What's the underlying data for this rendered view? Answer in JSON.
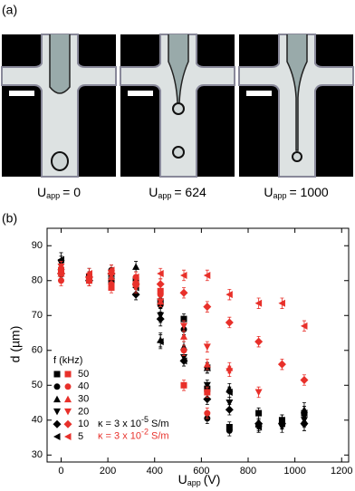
{
  "panel_a": {
    "label": "(a)",
    "images": [
      {
        "label": "U",
        "sub": "app",
        "value": "= 0"
      },
      {
        "label": "U",
        "sub": "app",
        "value": "= 624"
      },
      {
        "label": "U",
        "sub": "app",
        "value": "= 1000"
      }
    ]
  },
  "chart_data": {
    "type": "scatter",
    "panel_label": "(b)",
    "xlabel": {
      "main": "U",
      "sub": "app",
      "unit": "(V)"
    },
    "ylabel": "d (µm)",
    "xlim": [
      -60,
      1230
    ],
    "ylim": [
      28,
      95
    ],
    "xticks": [
      0,
      200,
      400,
      600,
      800,
      1000,
      1200
    ],
    "yticks": [
      30,
      40,
      50,
      60,
      70,
      80,
      90
    ],
    "legend_title": "f (kHz)",
    "frequencies": [
      {
        "name": "50",
        "marker": "square"
      },
      {
        "name": "40",
        "marker": "circle"
      },
      {
        "name": "30",
        "marker": "triangle-up"
      },
      {
        "name": "20",
        "marker": "triangle-down"
      },
      {
        "name": "10",
        "marker": "diamond"
      },
      {
        "name": "5",
        "marker": "triangle-left"
      }
    ],
    "series": [
      {
        "name": "κ = 3 x 10",
        "name_exp": "-5",
        "name_unit": "S/m",
        "color": "#000000",
        "groups": [
          {
            "x": [
              0,
              120,
              215,
              320,
              425,
              525,
              625,
              720,
              845,
              945,
              1040
            ],
            "values": [
              83,
              81,
              80,
              80,
              74,
              69,
              49,
              38,
              42,
              40,
              42
            ],
            "errors": [
              2,
              1.5,
              1.5,
              1.5,
              2,
              1.5,
              1.5,
              1.5,
              1.5,
              1.5,
              2
            ]
          },
          {
            "x": [
              0,
              120,
              215,
              320,
              425,
              525,
              625,
              720,
              845,
              945,
              1040
            ],
            "values": [
              82,
              81,
              83,
              80,
              73,
              66,
              40.5,
              37,
              38.5,
              39,
              39
            ],
            "errors": [
              2,
              1.5,
              1.5,
              1.5,
              2,
              1.5,
              1.5,
              1.5,
              1.5,
              1.5,
              2
            ]
          },
          {
            "x": [
              0,
              120,
              215,
              320,
              425,
              525,
              625,
              720,
              845,
              945,
              1040
            ],
            "values": [
              84,
              82,
              82,
              84,
              63,
              61,
              55,
              49,
              39,
              40,
              43
            ],
            "errors": [
              2,
              1.5,
              1.5,
              1.5,
              2,
              1.5,
              1.5,
              1.5,
              1.5,
              1.5,
              2
            ]
          },
          {
            "x": [
              0,
              120,
              215,
              320,
              425,
              525,
              625,
              720,
              845,
              945,
              1040
            ],
            "values": [
              85,
              80,
              81,
              78,
              70,
              58,
              50,
              45,
              38,
              38,
              40
            ],
            "errors": [
              2,
              1.5,
              1.5,
              1.5,
              2,
              1.5,
              1.5,
              1.5,
              1.5,
              1.5,
              2
            ]
          },
          {
            "x": [
              0,
              120,
              215,
              320,
              425,
              525,
              625,
              720,
              845,
              945,
              1040
            ],
            "values": [
              82,
              80,
              82,
              76,
              69,
              57,
              46,
              43,
              39,
              39,
              39
            ],
            "errors": [
              2,
              1.5,
              1.5,
              1.5,
              2,
              1.5,
              1.5,
              1.5,
              1.5,
              1.5,
              2
            ]
          },
          {
            "x": [
              0,
              120,
              215,
              320,
              425,
              525,
              625,
              720,
              845,
              945,
              1040
            ],
            "values": [
              86,
              81,
              79,
              78,
              62.5,
              57,
              55,
              48,
              38,
              39,
              42
            ],
            "errors": [
              2,
              1.5,
              1.5,
              1.5,
              2,
              1.5,
              1.5,
              1.5,
              1.5,
              1.5,
              2
            ]
          }
        ]
      },
      {
        "name": "κ = 3 x 10",
        "name_exp": "-2",
        "name_unit": "S/m",
        "color": "#e8302a",
        "groups": [
          {
            "x": [
              0,
              120,
              215,
              320,
              425,
              525,
              625
            ],
            "values": [
              83,
              80,
              78,
              79,
              77,
              50,
              48
            ],
            "errors": [
              1.5,
              1.5,
              1.5,
              1.5,
              1.5,
              1.5,
              1.5
            ]
          },
          {
            "x": [
              0,
              120,
              215,
              320,
              425,
              525,
              625
            ],
            "values": [
              80,
              80,
              79,
              81,
              76,
              60,
              42
            ],
            "errors": [
              1.5,
              1.5,
              1.5,
              1.5,
              1.5,
              1.5,
              1.5
            ]
          },
          {
            "x": [
              0,
              120,
              215,
              320,
              425,
              525,
              625,
              720
            ],
            "values": [
              82,
              81,
              81,
              80,
              74,
              64,
              56,
              55
            ],
            "errors": [
              1.5,
              1.5,
              1.5,
              1.5,
              1.5,
              1.5,
              1.5,
              1.5
            ]
          },
          {
            "x": [
              0,
              120,
              215,
              320,
              425,
              525,
              625,
              720,
              845
            ],
            "values": [
              84,
              80,
              82,
              78,
              74,
              67,
              61,
              54,
              48
            ],
            "errors": [
              1.5,
              1.5,
              1.5,
              1.5,
              1.5,
              1.5,
              1.5,
              1.5,
              1.5
            ]
          },
          {
            "x": [
              0,
              120,
              215,
              320,
              425,
              525,
              625,
              720,
              845,
              945,
              1040
            ],
            "values": [
              82,
              81,
              82,
              79,
              79,
              76.5,
              72.5,
              68,
              62.5,
              56,
              51.5
            ],
            "errors": [
              1.5,
              1.5,
              1.5,
              1.5,
              1.5,
              1.5,
              1.5,
              1.5,
              1.5,
              1.5,
              1.5
            ]
          },
          {
            "x": [
              0,
              120,
              215,
              320,
              425,
              525,
              625,
              720,
              845,
              945,
              1040
            ],
            "values": [
              83,
              82,
              83,
              81,
              82,
              81.5,
              81.5,
              76,
              73.5,
              73.5,
              67
            ],
            "errors": [
              1.5,
              1.5,
              1.5,
              1.5,
              1.5,
              1.5,
              1.5,
              1.5,
              1.5,
              1.5,
              1.5
            ]
          }
        ]
      }
    ]
  }
}
